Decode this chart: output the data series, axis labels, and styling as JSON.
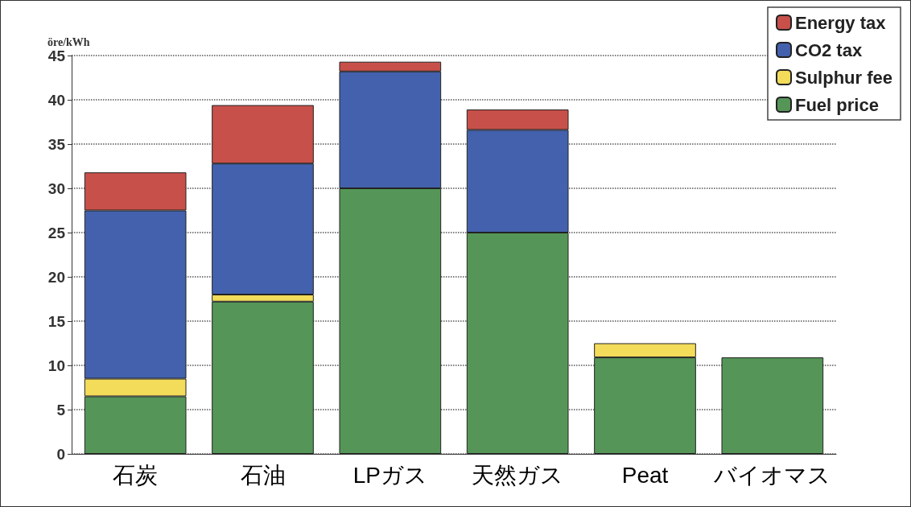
{
  "chart_data": {
    "type": "bar",
    "stacked": true,
    "ylabel": "öre/kWh",
    "categories": [
      "石炭",
      "石油",
      "LPガス",
      "天然ガス",
      "Peat",
      "バイオマス"
    ],
    "series": [
      {
        "name": "Fuel price",
        "color": "#559658",
        "values": [
          6.5,
          17.2,
          30,
          25,
          10.9,
          10.9
        ]
      },
      {
        "name": "Sulphur fee",
        "color": "#f2dc5a",
        "values": [
          2,
          0.8,
          null,
          null,
          1.6,
          null
        ]
      },
      {
        "name": "CO2 tax",
        "color": "#4361ad",
        "values": [
          19,
          14.8,
          13.2,
          11.6,
          null,
          null
        ]
      },
      {
        "name": "Energy tax",
        "color": "#c8504a",
        "values": [
          4.3,
          6.6,
          1.1,
          2.3,
          null,
          null
        ]
      }
    ],
    "ylim": [
      0,
      45
    ],
    "yticks": [
      0,
      5,
      10,
      15,
      20,
      25,
      30,
      35,
      40,
      45
    ],
    "grid": "y",
    "legend": "top right"
  }
}
